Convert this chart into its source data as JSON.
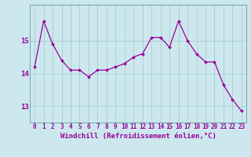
{
  "x": [
    0,
    1,
    2,
    3,
    4,
    5,
    6,
    7,
    8,
    9,
    10,
    11,
    12,
    13,
    14,
    15,
    16,
    17,
    18,
    19,
    20,
    21,
    22,
    23
  ],
  "y": [
    14.2,
    15.6,
    14.9,
    14.4,
    14.1,
    14.1,
    13.9,
    14.1,
    14.1,
    14.2,
    14.3,
    14.5,
    14.6,
    15.1,
    15.1,
    14.8,
    15.6,
    15.0,
    14.6,
    14.35,
    14.35,
    13.65,
    13.2,
    12.85
  ],
  "line_color": "#990099",
  "marker_color": "#990099",
  "bg_color": "#cce8ee",
  "grid_color": "#aacccc",
  "xlabel": "Windchill (Refroidissement éolien,°C)",
  "xlabel_color": "#990099",
  "ylim_min": 12.5,
  "ylim_max": 16.1,
  "yticks": [
    13,
    14,
    15
  ],
  "xticks": [
    0,
    1,
    2,
    3,
    4,
    5,
    6,
    7,
    8,
    9,
    10,
    11,
    12,
    13,
    14,
    15,
    16,
    17,
    18,
    19,
    20,
    21,
    22,
    23
  ],
  "tick_color": "#990099",
  "tick_fontsize": 5.5,
  "xlabel_fontsize": 6.5
}
